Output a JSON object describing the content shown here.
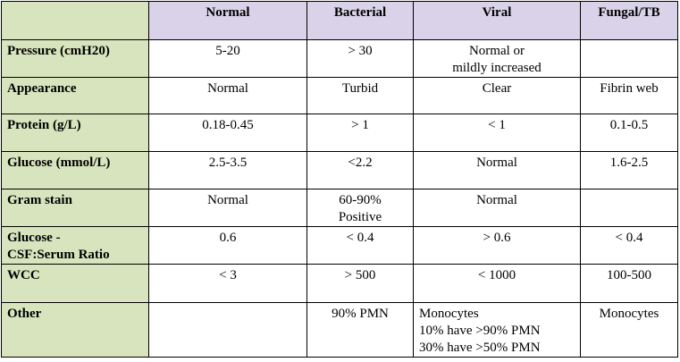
{
  "table": {
    "columns": [
      "",
      "Normal",
      "Bacterial",
      "Viral",
      "Fungal/TB"
    ],
    "rows": [
      {
        "label": [
          "Pressure (cmH20)"
        ],
        "cells": [
          [
            "5-20"
          ],
          [
            "> 30"
          ],
          [
            "Normal or",
            "mildly increased"
          ],
          [
            ""
          ]
        ]
      },
      {
        "label": [
          "Appearance"
        ],
        "cells": [
          [
            "Normal"
          ],
          [
            "Turbid"
          ],
          [
            "Clear"
          ],
          [
            "Fibrin web"
          ]
        ]
      },
      {
        "label": [
          "Protein (g/L)"
        ],
        "cells": [
          [
            "0.18-0.45"
          ],
          [
            "> 1"
          ],
          [
            "< 1"
          ],
          [
            "0.1-0.5"
          ]
        ]
      },
      {
        "label": [
          "Glucose (mmol/L)"
        ],
        "cells": [
          [
            "2.5-3.5"
          ],
          [
            "<2.2"
          ],
          [
            "Normal"
          ],
          [
            "1.6-2.5"
          ]
        ]
      },
      {
        "label": [
          "Gram stain"
        ],
        "cells": [
          [
            "Normal"
          ],
          [
            "60-90%",
            "Positive"
          ],
          [
            "Normal"
          ],
          [
            ""
          ]
        ]
      },
      {
        "label": [
          "Glucose -",
          "CSF:Serum Ratio"
        ],
        "cells": [
          [
            "0.6"
          ],
          [
            "< 0.4"
          ],
          [
            "> 0.6"
          ],
          [
            "< 0.4"
          ]
        ]
      },
      {
        "label": [
          "WCC"
        ],
        "cells": [
          [
            "< 3"
          ],
          [
            "> 500"
          ],
          [
            "< 1000"
          ],
          [
            "100-500"
          ]
        ]
      },
      {
        "label": [
          "Other"
        ],
        "cells": [
          [
            ""
          ],
          [
            "90% PMN"
          ],
          [
            "Monocytes",
            "10% have >90% PMN",
            "30% have >50% PMN"
          ],
          [
            "Monocytes"
          ]
        ]
      }
    ]
  }
}
